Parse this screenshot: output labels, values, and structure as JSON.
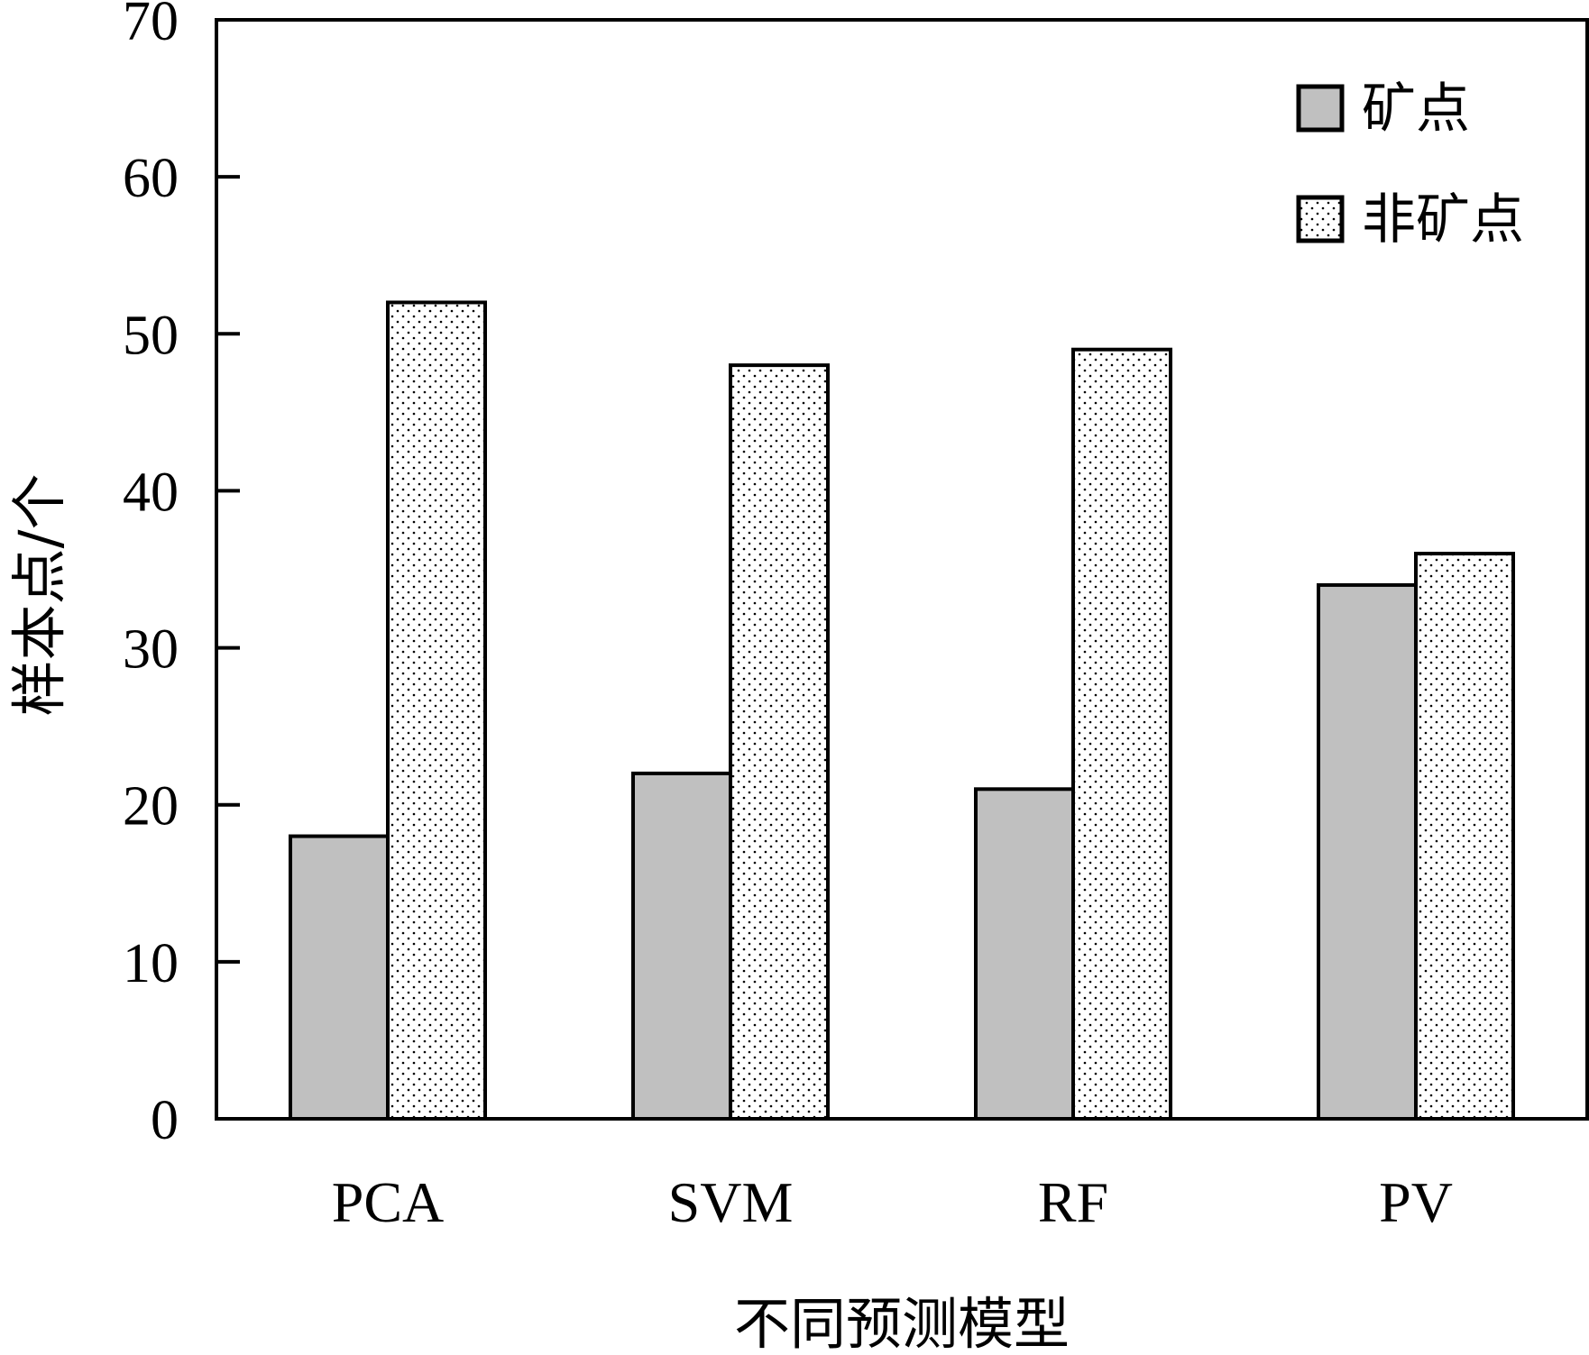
{
  "chart_data": {
    "type": "bar",
    "xlabel": "不同预测模型",
    "ylabel": "样本点/个",
    "ylim": [
      0,
      70
    ],
    "yticks": [
      0,
      10,
      20,
      30,
      40,
      50,
      60,
      70
    ],
    "categories": [
      "PCA",
      "SVM",
      "RF",
      "PV"
    ],
    "series": [
      {
        "name": "矿点",
        "values": [
          18,
          22,
          21,
          34
        ],
        "color": "#c0c0c0",
        "pattern": "solid"
      },
      {
        "name": "非矿点",
        "values": [
          52,
          48,
          49,
          36
        ],
        "color": "#ffffff",
        "pattern": "dots"
      }
    ],
    "legend_position": "top-right",
    "grid": false
  }
}
